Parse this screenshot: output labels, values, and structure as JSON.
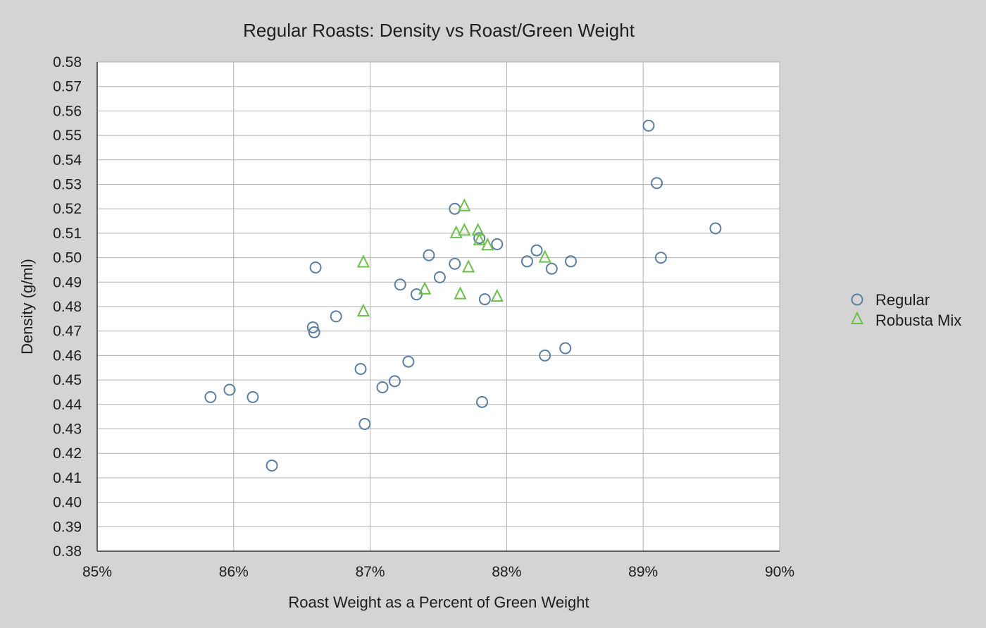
{
  "chart_data": {
    "type": "scatter",
    "title": "Regular Roasts: Density vs Roast/Green Weight",
    "xlabel": "Roast Weight as a Percent of Green Weight",
    "ylabel": "Density (g/ml)",
    "xlim": [
      85,
      90
    ],
    "ylim": [
      0.38,
      0.58
    ],
    "x_ticks": [
      85,
      86,
      87,
      88,
      89,
      90
    ],
    "x_tick_labels": [
      "85%",
      "86%",
      "87%",
      "88%",
      "89%",
      "90%"
    ],
    "y_ticks": [
      0.38,
      0.39,
      0.4,
      0.41,
      0.42,
      0.43,
      0.44,
      0.45,
      0.46,
      0.47,
      0.48,
      0.49,
      0.5,
      0.51,
      0.52,
      0.53,
      0.54,
      0.55,
      0.56,
      0.57,
      0.58
    ],
    "y_tick_labels": [
      "0.38",
      "0.39",
      "0.40",
      "0.41",
      "0.42",
      "0.43",
      "0.44",
      "0.45",
      "0.46",
      "0.47",
      "0.48",
      "0.49",
      "0.50",
      "0.51",
      "0.52",
      "0.53",
      "0.54",
      "0.55",
      "0.56",
      "0.57",
      "0.58"
    ],
    "grid": true,
    "legend_position": "right",
    "series": [
      {
        "name": "Regular",
        "marker": "circle",
        "color": "#5b7fa3",
        "points": [
          [
            85.83,
            0.443
          ],
          [
            85.97,
            0.446
          ],
          [
            86.14,
            0.443
          ],
          [
            86.28,
            0.415
          ],
          [
            86.58,
            0.4715
          ],
          [
            86.59,
            0.4695
          ],
          [
            86.6,
            0.496
          ],
          [
            86.75,
            0.476
          ],
          [
            86.93,
            0.4545
          ],
          [
            86.96,
            0.432
          ],
          [
            87.09,
            0.447
          ],
          [
            87.18,
            0.4495
          ],
          [
            87.22,
            0.489
          ],
          [
            87.28,
            0.4575
          ],
          [
            87.34,
            0.485
          ],
          [
            87.43,
            0.501
          ],
          [
            87.51,
            0.492
          ],
          [
            87.62,
            0.52
          ],
          [
            87.62,
            0.4975
          ],
          [
            87.8,
            0.508
          ],
          [
            87.82,
            0.441
          ],
          [
            87.84,
            0.483
          ],
          [
            87.93,
            0.5055
          ],
          [
            88.15,
            0.4985
          ],
          [
            88.22,
            0.503
          ],
          [
            88.28,
            0.46
          ],
          [
            88.33,
            0.4955
          ],
          [
            88.43,
            0.463
          ],
          [
            88.47,
            0.4985
          ],
          [
            89.04,
            0.554
          ],
          [
            89.1,
            0.5305
          ],
          [
            89.13,
            0.5
          ],
          [
            89.53,
            0.512
          ]
        ]
      },
      {
        "name": "Robusta Mix",
        "marker": "triangle",
        "color": "#6cc04a",
        "points": [
          [
            86.95,
            0.498
          ],
          [
            86.95,
            0.478
          ],
          [
            87.4,
            0.487
          ],
          [
            87.63,
            0.51
          ],
          [
            87.66,
            0.485
          ],
          [
            87.69,
            0.521
          ],
          [
            87.69,
            0.511
          ],
          [
            87.72,
            0.496
          ],
          [
            87.79,
            0.511
          ],
          [
            87.8,
            0.507
          ],
          [
            87.86,
            0.505
          ],
          [
            87.93,
            0.484
          ],
          [
            88.28,
            0.5
          ]
        ]
      }
    ]
  }
}
